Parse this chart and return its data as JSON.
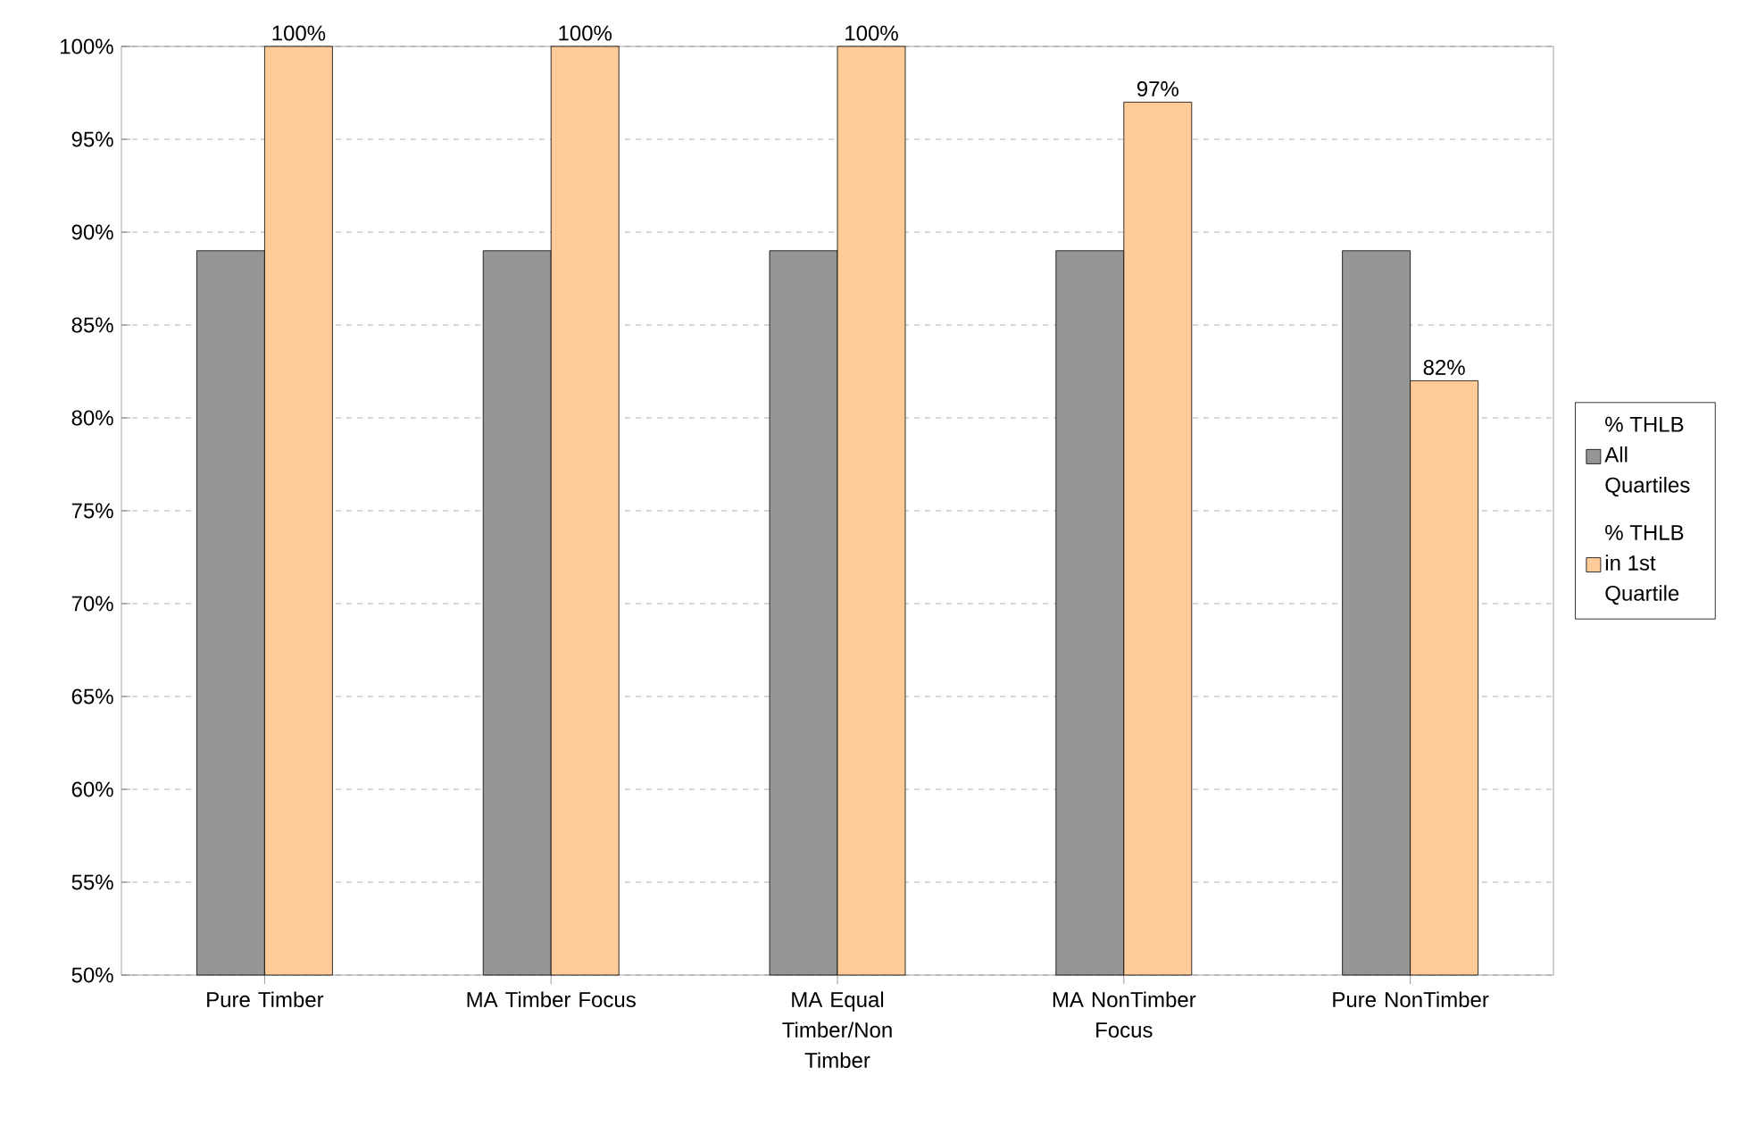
{
  "chart_data": {
    "type": "bar",
    "categories": [
      "Pure Timber",
      "MA Timber Focus",
      "MA Equal Timber/Non Timber",
      "MA NonTimber Focus",
      "Pure NonTimber"
    ],
    "series": [
      {
        "name": "% THLB All Quartiles",
        "color": "#969696",
        "values": [
          89,
          89,
          89,
          89,
          89
        ]
      },
      {
        "name": "% THLB in 1st Quartile",
        "color": "#ffcc99",
        "values": [
          100,
          100,
          100,
          97,
          82
        ],
        "value_labels": [
          "100%",
          "100%",
          "100%",
          "97%",
          "82%"
        ]
      }
    ],
    "ylim": [
      50,
      100
    ],
    "yticks": [
      {
        "value": 50,
        "label": "50%"
      },
      {
        "value": 55,
        "label": "55%"
      },
      {
        "value": 60,
        "label": "60%"
      },
      {
        "value": 65,
        "label": "65%"
      },
      {
        "value": 70,
        "label": "70%"
      },
      {
        "value": 75,
        "label": "75%"
      },
      {
        "value": 80,
        "label": "80%"
      },
      {
        "value": 85,
        "label": "85%"
      },
      {
        "value": 90,
        "label": "90%"
      },
      {
        "value": 95,
        "label": "95%"
      },
      {
        "value": 100,
        "label": "100%"
      }
    ],
    "grid": "y",
    "legend": "right"
  }
}
